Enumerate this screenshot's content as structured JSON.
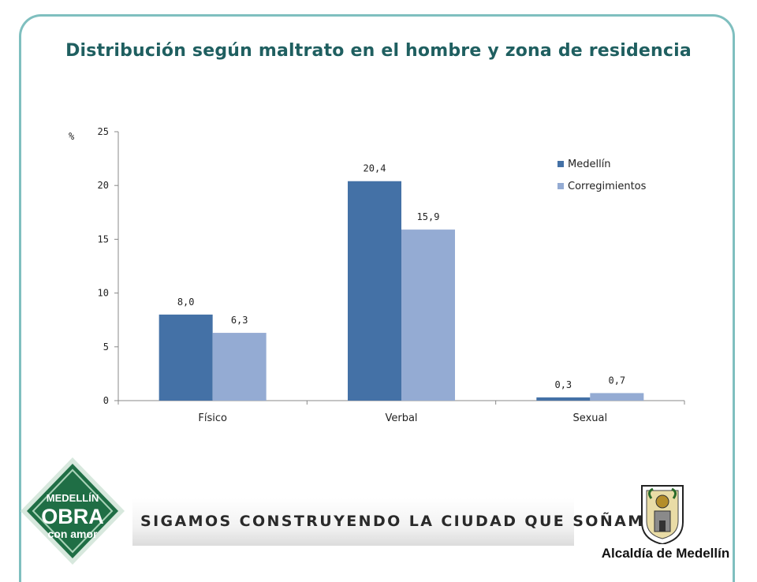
{
  "title": "Distribución según maltrato en el hombre y zona de residencia",
  "chart_data": {
    "type": "bar",
    "title": "Distribución según maltrato en el hombre y zona de residencia",
    "ylabel": "%",
    "xlabel": "",
    "ylim": [
      0,
      25
    ],
    "yticks": [
      "0",
      "5",
      "10",
      "15",
      "20",
      "25"
    ],
    "categories": [
      "Físico",
      "Verbal",
      "Sexual"
    ],
    "series": [
      {
        "name": "Medellín",
        "values": [
          8.0,
          20.4,
          0.3
        ],
        "labels": [
          "8,0",
          "20,4",
          "0,3"
        ],
        "color": "#4471a6"
      },
      {
        "name": "Corregimientos",
        "values": [
          6.3,
          15.9,
          0.7
        ],
        "labels": [
          "6,3",
          "15,9",
          "0,7"
        ],
        "color": "#94abd3"
      }
    ],
    "grid": false,
    "legend": "top-right"
  },
  "footer": {
    "tagline": "SIGAMOS CONSTRUYENDO LA CIUDAD QUE SOÑAMOS",
    "logo_left_lines": [
      "MEDELLÍN",
      "OBRA",
      "con amor"
    ],
    "logo_right_name": "Alcaldía de Medellín"
  },
  "colors": {
    "title": "#1f5f60",
    "frame": "#7fbfbf",
    "logo_green": "#1f6e45"
  }
}
